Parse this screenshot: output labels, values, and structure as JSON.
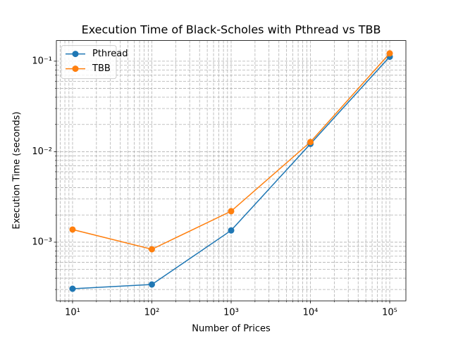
{
  "chart_data": {
    "type": "line",
    "title": "Execution Time of Black-Scholes with Pthread vs TBB",
    "xlabel": "Number of Prices",
    "ylabel": "Execution Time (seconds)",
    "x": [
      10,
      100,
      1000,
      10000,
      100000
    ],
    "series": [
      {
        "name": "Pthread",
        "color": "#1f77b4",
        "values": [
          0.000306,
          0.000341,
          0.00135,
          0.0122,
          0.112
        ]
      },
      {
        "name": "TBB",
        "color": "#ff7f0e",
        "values": [
          0.00138,
          0.000835,
          0.0022,
          0.0128,
          0.122
        ]
      }
    ],
    "xscale": "log",
    "yscale": "log",
    "xlim": [
      6.25,
      160000
    ],
    "ylim": [
      0.000225,
      0.169
    ],
    "xticks": [
      {
        "value": 10,
        "label": "10¹"
      },
      {
        "value": 100,
        "label": "10²"
      },
      {
        "value": 1000,
        "label": "10³"
      },
      {
        "value": 10000,
        "label": "10⁴"
      },
      {
        "value": 100000,
        "label": "10⁵"
      }
    ],
    "yticks": [
      {
        "value": 0.001,
        "label": "10⁻³"
      },
      {
        "value": 0.01,
        "label": "10⁻²"
      },
      {
        "value": 0.1,
        "label": "10⁻¹"
      }
    ],
    "xminorticks": [
      7,
      8,
      9,
      20,
      30,
      40,
      50,
      60,
      70,
      80,
      90,
      200,
      300,
      400,
      500,
      600,
      700,
      800,
      900,
      2000,
      3000,
      4000,
      5000,
      6000,
      7000,
      8000,
      9000,
      20000,
      30000,
      40000,
      50000,
      60000,
      70000,
      80000,
      90000
    ],
    "yminorticks": [
      0.0003,
      0.0004,
      0.0005,
      0.0006,
      0.0007,
      0.0008,
      0.0009,
      0.002,
      0.003,
      0.004,
      0.005,
      0.006,
      0.007,
      0.008,
      0.009,
      0.02,
      0.03,
      0.04,
      0.05,
      0.06,
      0.07,
      0.08,
      0.09
    ],
    "grid": true,
    "legend": "upper left"
  }
}
